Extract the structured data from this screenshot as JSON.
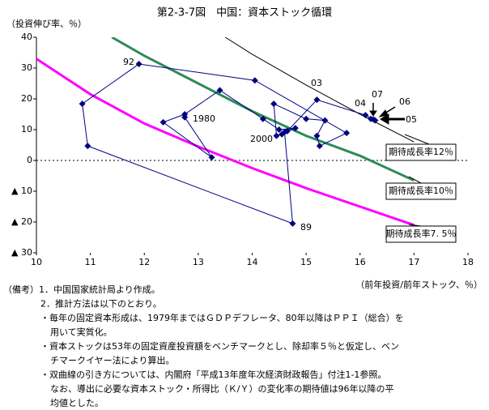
{
  "chart_data": {
    "type": "line",
    "title": "第2-3-7図　中国：資本ストック循環",
    "y_label": "（投資伸び率、％）",
    "x_label": "（前年投資/前年ストック、％）",
    "xlim": [
      10,
      18
    ],
    "xticks": [
      10,
      11,
      12,
      13,
      14,
      15,
      16,
      17,
      18
    ],
    "ylim": [
      -30,
      40
    ],
    "yticks": [
      40,
      30,
      20,
      10,
      0,
      {
        "value": -10,
        "label": "▲ 10"
      },
      {
        "value": -20,
        "label": "▲ 20"
      },
      {
        "value": -30,
        "label": "▲ 30"
      }
    ],
    "series": [
      {
        "color": "#000080",
        "marker": "diamond",
        "x": [
          12.75,
          13.25,
          12.35,
          12.75,
          13.4,
          14.2,
          14.5,
          14.8,
          14.6,
          14.75,
          10.95,
          10.85,
          11.9,
          14.05,
          15.75,
          15.25,
          15.2,
          15.35,
          15.0,
          14.4,
          14.45,
          14.55,
          14.65,
          15.2,
          16.1,
          16.25,
          16.28,
          16.2
        ],
        "values": [
          14.0,
          1.0,
          12.4,
          15.0,
          22.8,
          13.5,
          10.0,
          10.5,
          9.2,
          -20.5,
          4.7,
          18.4,
          31.3,
          26.0,
          8.9,
          4.7,
          8.0,
          13.0,
          13.5,
          18.4,
          8.0,
          8.5,
          9.5,
          19.7,
          14.7,
          13.3,
          13.0,
          13.5
        ]
      },
      {
        "color": "#000000",
        "width": 1,
        "label": "期待成長率12％",
        "x": [
          13.5,
          14.0,
          15.0,
          16.0,
          17.0
        ],
        "values": [
          40,
          34.5,
          24.5,
          15,
          6
        ]
      },
      {
        "color": "#2e8b57",
        "width": 3,
        "label": "期待成長率10％",
        "x": [
          11.4,
          12.0,
          13.0,
          14.0,
          15.0,
          16.0,
          17.0
        ],
        "values": [
          40,
          34,
          25,
          16,
          8,
          1.5,
          -6.5
        ]
      },
      {
        "color": "#ff00ff",
        "width": 3,
        "label": "期待成長率7. 5％",
        "x": [
          10.0,
          11.0,
          12.0,
          13.0,
          14.0,
          15.0,
          16.0,
          17.0
        ],
        "values": [
          33,
          21.5,
          12,
          4.5,
          -2.5,
          -9,
          -15,
          -21
        ]
      }
    ],
    "annotations": [
      "92",
      "1980",
      "2000",
      "03",
      "04",
      "07",
      "06",
      "05",
      "89"
    ]
  },
  "notes": [
    "（備考）1．中国国家統計局より作成。",
    "2．推計方法は以下のとおり。",
    "・毎年の固定資本形成は、1979年まではＧＤＰデフレータ、80年以降はＰＰＩ（総合）を",
    "用いて実質化。",
    "・資本ストックは53年の固定資産投資額をベンチマークとし、除却率５％と仮定し、ベン",
    "チマークイヤー法により算出。",
    "・双曲線の引き方については、内閣府「平成13年度年次経済財政報告」付注1-1参照。",
    "なお、導出に必要な資本ストック・所得比（Ｋ/Ｙ）の変化率の期待値は96年以降の平",
    "均値とした。"
  ]
}
